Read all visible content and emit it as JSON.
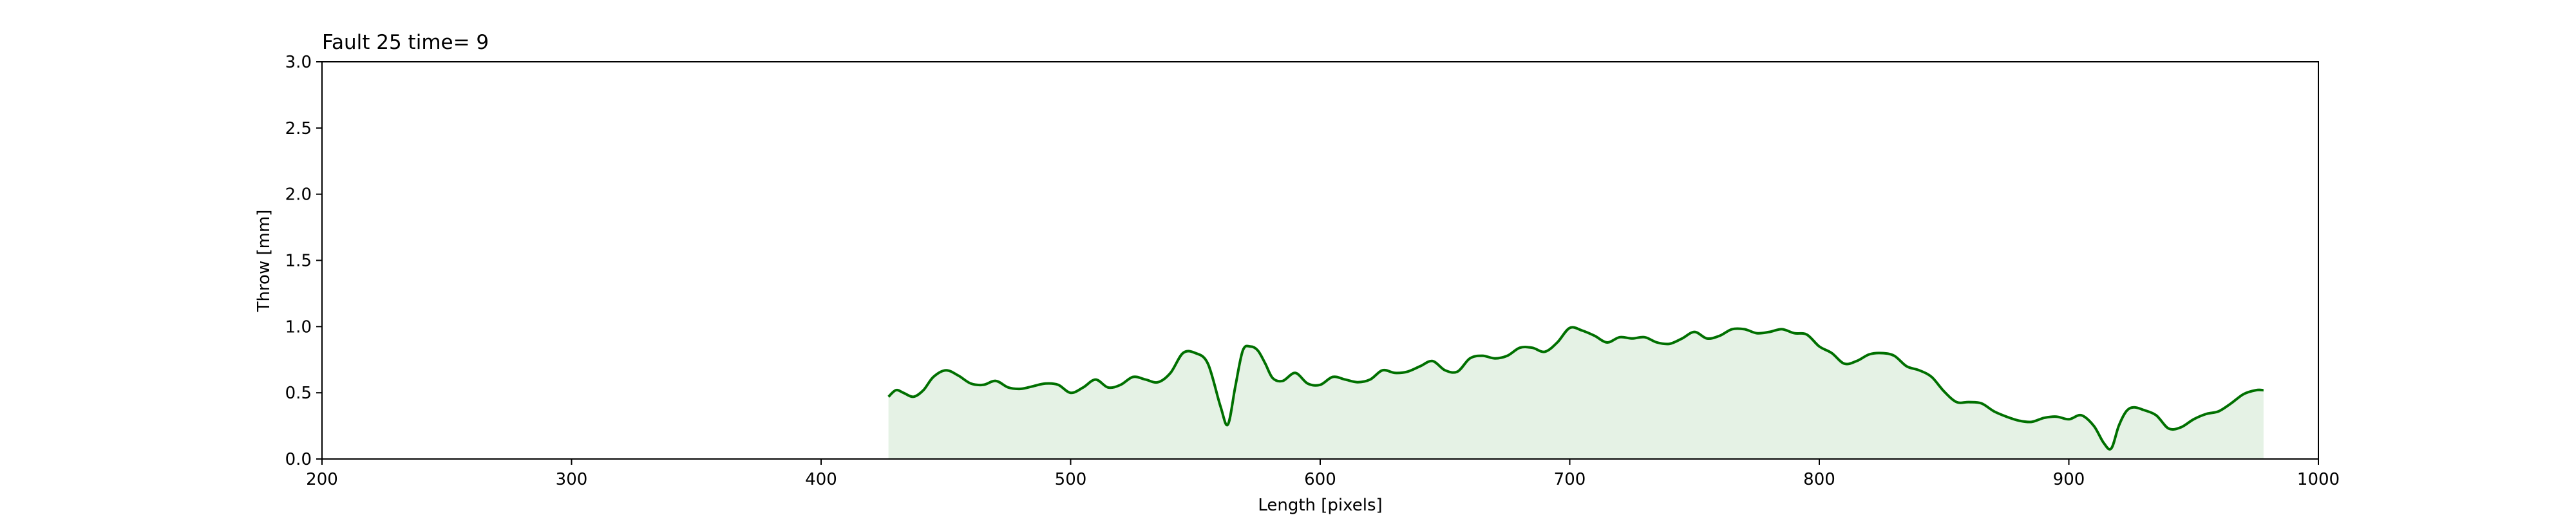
{
  "chart_data": {
    "type": "area",
    "title": "Fault 25 time= 9",
    "xlabel": "Length [pixels]",
    "ylabel": "Throw [mm]",
    "xlim": [
      200,
      1000
    ],
    "ylim": [
      0.0,
      3.0
    ],
    "xticks": [
      200,
      300,
      400,
      500,
      600,
      700,
      800,
      900,
      1000
    ],
    "yticks": [
      "0.0",
      "0.5",
      "1.0",
      "1.5",
      "2.0",
      "2.5",
      "3.0"
    ],
    "grid": false,
    "colors": {
      "line": "#007000",
      "fill": "#e5f2e5",
      "axes": "#000000"
    },
    "series": [
      {
        "name": "Throw",
        "x": [
          427,
          430,
          433,
          437,
          441,
          445,
          450,
          455,
          460,
          465,
          470,
          475,
          480,
          485,
          490,
          495,
          500,
          505,
          510,
          515,
          520,
          525,
          530,
          535,
          540,
          545,
          550,
          555,
          560,
          563,
          566,
          569,
          572,
          575,
          578,
          581,
          585,
          590,
          595,
          600,
          605,
          610,
          615,
          620,
          625,
          630,
          635,
          640,
          645,
          650,
          655,
          660,
          665,
          670,
          675,
          680,
          685,
          690,
          695,
          700,
          705,
          710,
          715,
          720,
          725,
          730,
          735,
          740,
          745,
          750,
          755,
          760,
          765,
          770,
          775,
          780,
          785,
          790,
          795,
          800,
          805,
          810,
          815,
          820,
          825,
          830,
          835,
          840,
          845,
          850,
          855,
          860,
          865,
          870,
          875,
          880,
          885,
          890,
          895,
          900,
          905,
          910,
          914,
          917,
          920,
          923,
          926,
          930,
          935,
          940,
          945,
          950,
          955,
          960,
          965,
          970,
          975,
          978
        ],
        "y": [
          0.47,
          0.52,
          0.5,
          0.47,
          0.52,
          0.62,
          0.67,
          0.63,
          0.57,
          0.56,
          0.59,
          0.54,
          0.53,
          0.55,
          0.57,
          0.56,
          0.5,
          0.54,
          0.6,
          0.54,
          0.56,
          0.62,
          0.6,
          0.58,
          0.65,
          0.8,
          0.8,
          0.72,
          0.4,
          0.26,
          0.55,
          0.82,
          0.85,
          0.82,
          0.72,
          0.61,
          0.59,
          0.65,
          0.57,
          0.56,
          0.62,
          0.6,
          0.58,
          0.6,
          0.67,
          0.65,
          0.66,
          0.7,
          0.74,
          0.67,
          0.66,
          0.76,
          0.78,
          0.76,
          0.78,
          0.84,
          0.84,
          0.81,
          0.88,
          0.99,
          0.97,
          0.93,
          0.88,
          0.92,
          0.91,
          0.92,
          0.88,
          0.87,
          0.91,
          0.96,
          0.91,
          0.93,
          0.98,
          0.98,
          0.95,
          0.96,
          0.98,
          0.95,
          0.94,
          0.85,
          0.8,
          0.72,
          0.74,
          0.79,
          0.8,
          0.78,
          0.7,
          0.67,
          0.62,
          0.51,
          0.43,
          0.43,
          0.42,
          0.36,
          0.32,
          0.29,
          0.28,
          0.31,
          0.32,
          0.3,
          0.33,
          0.25,
          0.12,
          0.08,
          0.25,
          0.36,
          0.39,
          0.37,
          0.33,
          0.23,
          0.24,
          0.3,
          0.34,
          0.36,
          0.42,
          0.49,
          0.52,
          0.52
        ]
      }
    ]
  }
}
